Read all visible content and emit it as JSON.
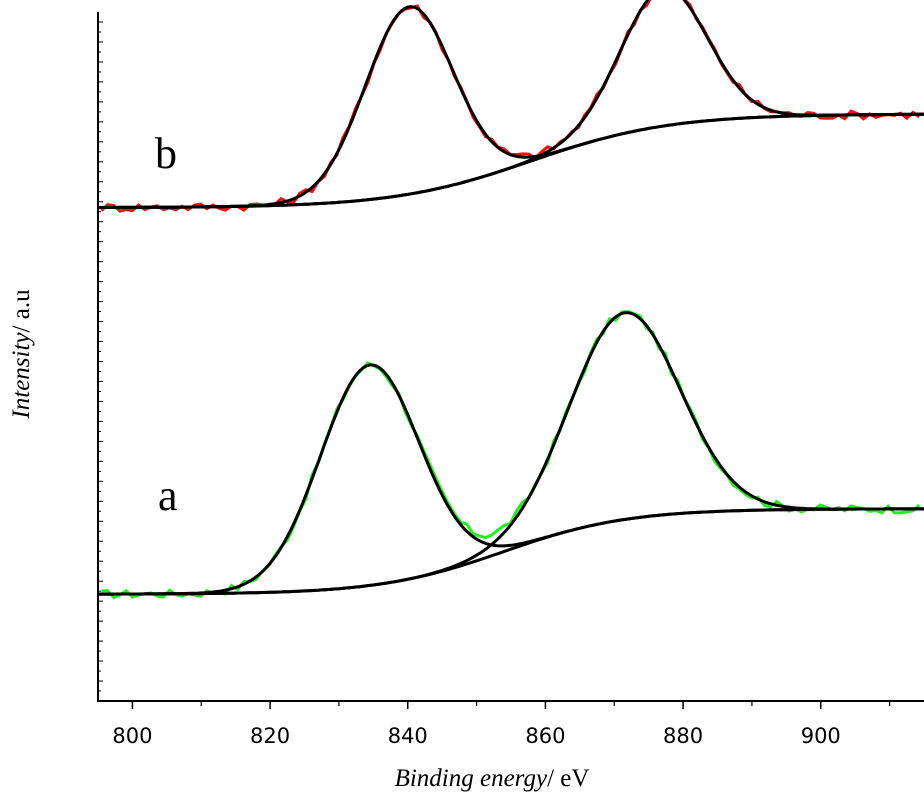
{
  "chart_data": {
    "type": "line",
    "xlabel": {
      "italic": "Binding energy",
      "rest": "/ eV"
    },
    "ylabel": {
      "italic": "Intensity",
      "rest": "/ a.u"
    },
    "xlim": [
      795,
      915
    ],
    "xticks": [
      800,
      820,
      840,
      860,
      880,
      900
    ],
    "ylim": [
      0,
      1
    ],
    "yticks_labeled": false,
    "grid": false,
    "legend": "none",
    "curve_labels": [
      "a",
      "b"
    ],
    "series": [
      {
        "label": "a",
        "color": "#22ee22",
        "baseline": 0.155,
        "plateau": 0.279,
        "step_center": 854,
        "step_width": 9,
        "fit_peaks": [
          {
            "center": 834.5,
            "height": 0.32,
            "width": 7.2
          },
          {
            "center": 871.5,
            "height": 0.3,
            "width": 8.0
          }
        ]
      },
      {
        "label": "b",
        "color": "#ee1111",
        "baseline": 0.716,
        "plateau": 0.852,
        "step_center": 858,
        "step_width": 10,
        "fit_peaks": [
          {
            "center": 840.2,
            "height": 0.272,
            "width": 6.4
          },
          {
            "center": 877.2,
            "height": 0.2,
            "width": 6.3
          }
        ]
      }
    ]
  }
}
